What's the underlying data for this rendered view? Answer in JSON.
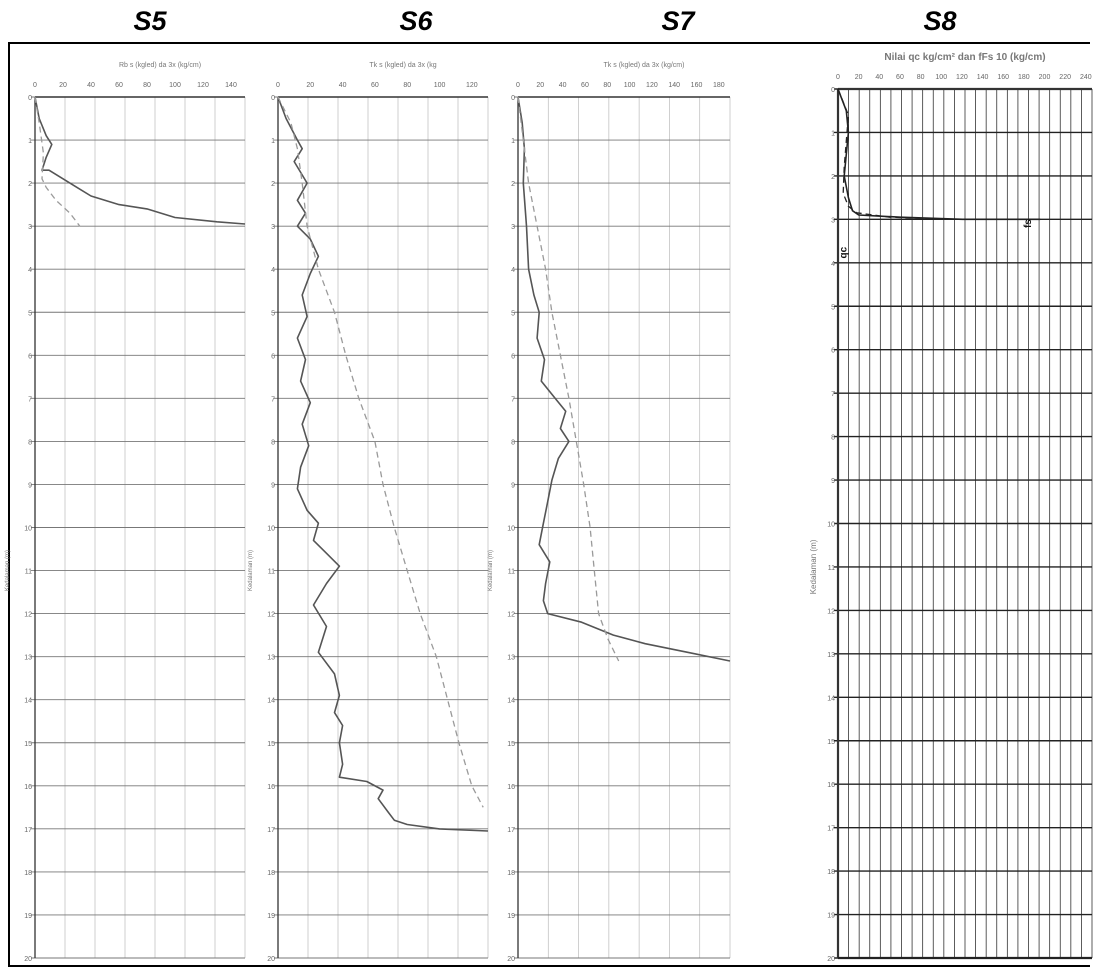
{
  "page": {
    "background": "#ffffff"
  },
  "panels": [
    {
      "id": "S5",
      "title": "S5",
      "axis_title": "Rb s (kgled) da 3x (kg/cm)"
    },
    {
      "id": "S6",
      "title": "S6",
      "axis_title": "Tk s (kgled) da 3x (kg"
    },
    {
      "id": "S7",
      "title": "S7",
      "axis_title": "Tk s (kgled) da 3x (kg/cm)"
    },
    {
      "id": "S8",
      "title": "S8",
      "axis_title": "Nilai qc kg/cm² dan fFs 10 (kg/cm)"
    }
  ],
  "chart_data": [
    {
      "type": "line",
      "title": "S5",
      "xlabel": "Rb s (kgled) da 3x (kg/cm)",
      "ylabel": "Kedalaman (m)",
      "x_ticks": [
        "0",
        "20",
        "40",
        "60",
        "80",
        "100",
        "120",
        "140"
      ],
      "y_ticks": [
        "0",
        "1",
        "2",
        "3",
        "4",
        "5",
        "6",
        "7",
        "8",
        "9",
        "10",
        "11",
        "12",
        "13",
        "14",
        "15",
        "16",
        "17",
        "18",
        "19",
        "20"
      ],
      "xlim": [
        0,
        150
      ],
      "ylim": [
        0,
        20
      ],
      "grid": true,
      "series": [
        {
          "style": "solid",
          "color": "#555555",
          "points": [
            [
              0,
              0
            ],
            [
              3,
              0.5
            ],
            [
              8,
              0.9
            ],
            [
              12,
              1.1
            ],
            [
              8,
              1.4
            ],
            [
              5,
              1.7
            ],
            [
              10,
              1.7
            ],
            [
              20,
              1.9
            ],
            [
              30,
              2.1
            ],
            [
              40,
              2.3
            ],
            [
              60,
              2.5
            ],
            [
              80,
              2.6
            ],
            [
              100,
              2.8
            ],
            [
              130,
              2.9
            ],
            [
              150,
              2.95
            ]
          ]
        },
        {
          "style": "dashed",
          "color": "#9a9a9a",
          "points": [
            [
              0,
              0
            ],
            [
              3,
              0.6
            ],
            [
              6,
              1.3
            ],
            [
              5,
              1.9
            ],
            [
              8,
              2.1
            ],
            [
              15,
              2.4
            ],
            [
              25,
              2.7
            ],
            [
              32,
              3.0
            ]
          ]
        }
      ]
    },
    {
      "type": "line",
      "title": "S6",
      "xlabel": "Tk s (kgled) da 3x (kg",
      "ylabel": "Kedalaman (m)",
      "x_ticks": [
        "0",
        "20",
        "40",
        "60",
        "80",
        "100",
        "120"
      ],
      "y_ticks": [
        "0",
        "1",
        "2",
        "3",
        "4",
        "5",
        "6",
        "7",
        "8",
        "9",
        "10",
        "11",
        "12",
        "13",
        "14",
        "15",
        "16",
        "17",
        "18",
        "19",
        "20"
      ],
      "xlim": [
        0,
        130
      ],
      "ylim": [
        0,
        20
      ],
      "grid": true,
      "series": [
        {
          "style": "solid",
          "color": "#555555",
          "points": [
            [
              0,
              0
            ],
            [
              5,
              0.5
            ],
            [
              12,
              1
            ],
            [
              15,
              1.2
            ],
            [
              10,
              1.5
            ],
            [
              18,
              2
            ],
            [
              12,
              2.4
            ],
            [
              17,
              2.7
            ],
            [
              12,
              3
            ],
            [
              20,
              3.3
            ],
            [
              25,
              3.7
            ],
            [
              20,
              4.1
            ],
            [
              15,
              4.6
            ],
            [
              18,
              5.1
            ],
            [
              12,
              5.6
            ],
            [
              17,
              6.1
            ],
            [
              14,
              6.6
            ],
            [
              20,
              7.1
            ],
            [
              15,
              7.6
            ],
            [
              19,
              8.1
            ],
            [
              14,
              8.6
            ],
            [
              12,
              9.1
            ],
            [
              18,
              9.6
            ],
            [
              25,
              9.9
            ],
            [
              22,
              10.3
            ],
            [
              30,
              10.6
            ],
            [
              38,
              10.9
            ],
            [
              30,
              11.3
            ],
            [
              22,
              11.8
            ],
            [
              30,
              12.3
            ],
            [
              25,
              12.9
            ],
            [
              35,
              13.4
            ],
            [
              38,
              13.9
            ],
            [
              35,
              14.3
            ],
            [
              40,
              14.6
            ],
            [
              38,
              15
            ],
            [
              40,
              15.5
            ],
            [
              38,
              15.8
            ],
            [
              55,
              15.9
            ],
            [
              65,
              16.1
            ],
            [
              62,
              16.3
            ],
            [
              68,
              16.6
            ],
            [
              72,
              16.8
            ],
            [
              80,
              16.9
            ],
            [
              100,
              17
            ],
            [
              130,
              17.05
            ]
          ]
        },
        {
          "style": "dashed",
          "color": "#9a9a9a",
          "points": [
            [
              0,
              0
            ],
            [
              8,
              0.6
            ],
            [
              12,
              1.2
            ],
            [
              15,
              2
            ],
            [
              18,
              3
            ],
            [
              25,
              4
            ],
            [
              35,
              5
            ],
            [
              42,
              6
            ],
            [
              50,
              7
            ],
            [
              60,
              8
            ],
            [
              65,
              9
            ],
            [
              72,
              10
            ],
            [
              80,
              11
            ],
            [
              88,
              12
            ],
            [
              98,
              13
            ],
            [
              105,
              14
            ],
            [
              112,
              15
            ],
            [
              120,
              16
            ],
            [
              127,
              16.5
            ]
          ]
        }
      ]
    },
    {
      "type": "line",
      "title": "S7",
      "xlabel": "Tk s (kgled) da 3x (kg/cm)",
      "ylabel": "Kedalaman (m)",
      "x_ticks": [
        "0",
        "20",
        "40",
        "60",
        "80",
        "100",
        "120",
        "140",
        "160",
        "180"
      ],
      "y_ticks": [
        "0",
        "1",
        "2",
        "3",
        "4",
        "5",
        "6",
        "7",
        "8",
        "9",
        "10",
        "11",
        "12",
        "13",
        "14",
        "15",
        "16",
        "17",
        "18",
        "19",
        "20"
      ],
      "xlim": [
        0,
        200
      ],
      "ylim": [
        0,
        20
      ],
      "grid": true,
      "series": [
        {
          "style": "solid",
          "color": "#555555",
          "points": [
            [
              0,
              0
            ],
            [
              4,
              0.6
            ],
            [
              6,
              1.2
            ],
            [
              5,
              2
            ],
            [
              8,
              3
            ],
            [
              10,
              4
            ],
            [
              15,
              4.6
            ],
            [
              20,
              5
            ],
            [
              18,
              5.6
            ],
            [
              25,
              6.1
            ],
            [
              22,
              6.6
            ],
            [
              35,
              7
            ],
            [
              45,
              7.3
            ],
            [
              40,
              7.7
            ],
            [
              48,
              8
            ],
            [
              38,
              8.4
            ],
            [
              32,
              8.9
            ],
            [
              28,
              9.4
            ],
            [
              24,
              9.9
            ],
            [
              20,
              10.4
            ],
            [
              30,
              10.8
            ],
            [
              26,
              11.3
            ],
            [
              24,
              11.7
            ],
            [
              28,
              12
            ],
            [
              60,
              12.2
            ],
            [
              90,
              12.5
            ],
            [
              120,
              12.7
            ],
            [
              160,
              12.9
            ],
            [
              200,
              13.1
            ]
          ]
        },
        {
          "style": "dashed",
          "color": "#9a9a9a",
          "points": [
            [
              0,
              0
            ],
            [
              5,
              1
            ],
            [
              10,
              2
            ],
            [
              18,
              3
            ],
            [
              26,
              4
            ],
            [
              32,
              5
            ],
            [
              40,
              6
            ],
            [
              48,
              7
            ],
            [
              55,
              8
            ],
            [
              62,
              9
            ],
            [
              68,
              10
            ],
            [
              72,
              11
            ],
            [
              76,
              12
            ],
            [
              85,
              12.6
            ],
            [
              95,
              13.1
            ]
          ]
        }
      ]
    },
    {
      "type": "line",
      "title": "S8",
      "xlabel": "Nilai qc kg/cm² dan fFs 10 (kg/cm)",
      "ylabel": "Kedalaman (m)",
      "x_ticks": [
        "0",
        "20",
        "40",
        "60",
        "80",
        "100",
        "120",
        "140",
        "160",
        "180",
        "200",
        "220",
        "240"
      ],
      "y_ticks": [
        "0",
        "1",
        "2",
        "3",
        "4",
        "5",
        "6",
        "7",
        "8",
        "9",
        "10",
        "11",
        "12",
        "13",
        "14",
        "15",
        "16",
        "17",
        "18",
        "19",
        "20"
      ],
      "xlim": [
        0,
        245
      ],
      "ylim": [
        0,
        20
      ],
      "grid": true,
      "annotations": [
        "qc",
        "fs"
      ],
      "series": [
        {
          "style": "solid",
          "color": "#222222",
          "points": [
            [
              0,
              0
            ],
            [
              8,
              0.5
            ],
            [
              10,
              1
            ],
            [
              8,
              1.5
            ],
            [
              6,
              2
            ],
            [
              10,
              2.5
            ],
            [
              14,
              2.8
            ],
            [
              20,
              2.9
            ],
            [
              60,
              2.95
            ],
            [
              120,
              3.0
            ],
            [
              180,
              3.0
            ],
            [
              195,
              3.0
            ]
          ]
        },
        {
          "style": "dashed",
          "color": "#222222",
          "points": [
            [
              0,
              0
            ],
            [
              10,
              0.6
            ],
            [
              8,
              1.2
            ],
            [
              6,
              1.8
            ],
            [
              5,
              2.4
            ],
            [
              10,
              2.7
            ],
            [
              18,
              2.85
            ],
            [
              50,
              2.95
            ],
            [
              110,
              3.0
            ],
            [
              175,
              3.0
            ],
            [
              195,
              3.0
            ]
          ]
        }
      ]
    }
  ]
}
